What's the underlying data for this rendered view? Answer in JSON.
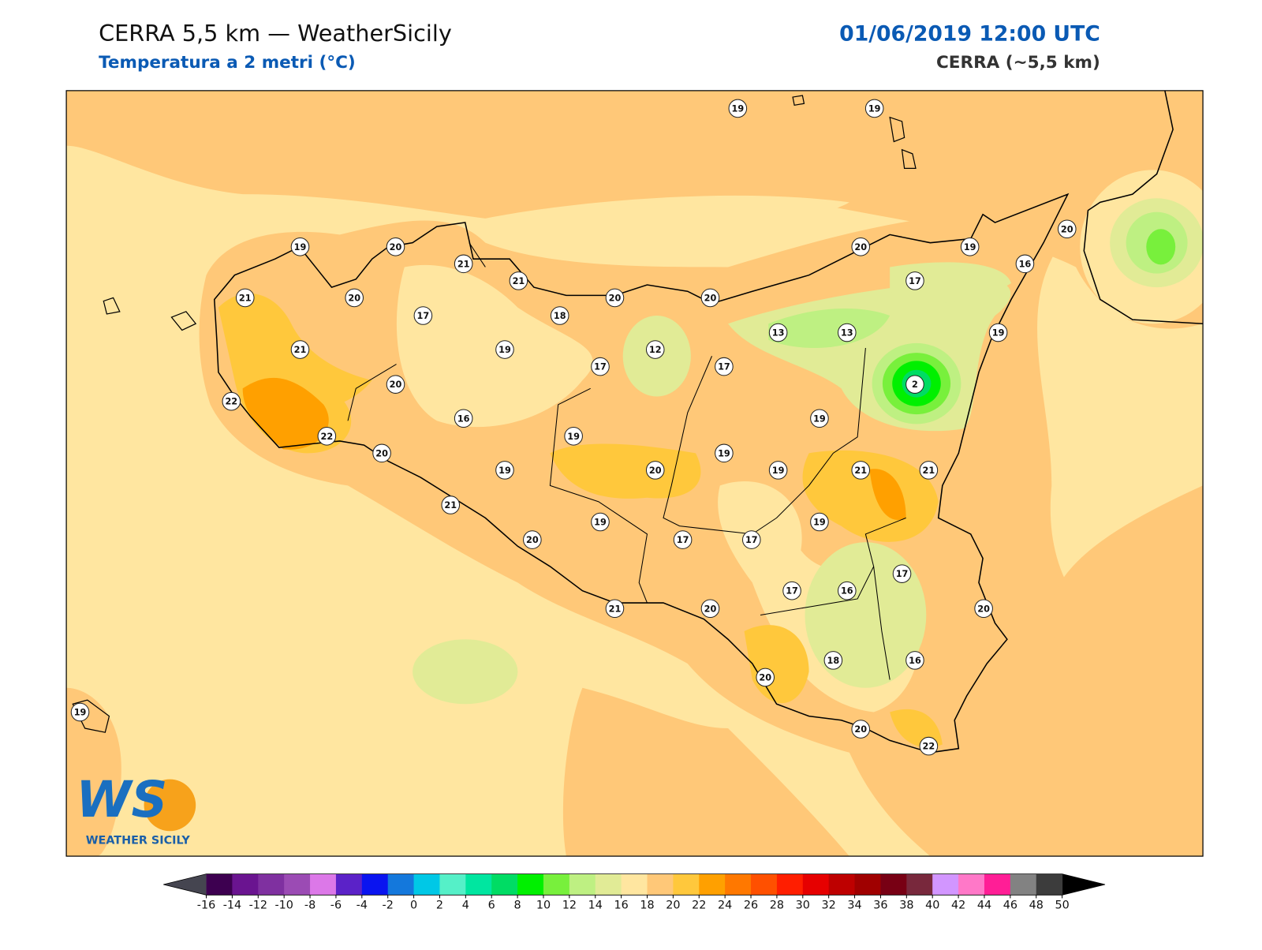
{
  "header": {
    "title": "CERRA 5,5 km — WeatherSicily",
    "subtitle": "Temperatura a 2 metri (°C)",
    "datetime": "01/06/2019 12:00 UTC",
    "model": "CERRA (~5,5 km)"
  },
  "map": {
    "station_values": [
      19,
      19,
      19,
      20,
      21,
      21,
      20,
      19,
      20,
      16,
      17,
      21,
      20,
      20,
      20,
      17,
      18,
      13,
      13,
      19,
      21,
      19,
      12,
      17,
      17,
      20,
      2,
      22,
      16,
      19,
      22,
      19,
      20,
      19,
      19,
      20,
      19,
      21,
      21,
      21,
      19,
      19,
      20,
      17,
      17,
      17,
      17,
      16,
      21,
      20,
      20,
      18,
      16,
      20,
      19,
      20,
      22
    ]
  },
  "logo": {
    "mark": "WS",
    "name": "WEATHER SICILY"
  },
  "colorbar": {
    "ticks": [
      -16,
      -14,
      -12,
      -10,
      -8,
      -6,
      -4,
      -2,
      0,
      2,
      4,
      6,
      8,
      10,
      12,
      14,
      16,
      18,
      20,
      22,
      24,
      26,
      28,
      30,
      32,
      34,
      36,
      38,
      40,
      42,
      44,
      46,
      48,
      50
    ],
    "colors": [
      "#3d0050",
      "#6a1490",
      "#7f30a0",
      "#9b4bb4",
      "#dc78e8",
      "#5b22c8",
      "#0a14f0",
      "#1478dc",
      "#00c8e6",
      "#55f0c8",
      "#00e6a0",
      "#00dc64",
      "#00f000",
      "#78f03c",
      "#bef082",
      "#e1eb96",
      "#ffe6a0",
      "#ffc878",
      "#ffc83c",
      "#ffa000",
      "#ff7800",
      "#ff5000",
      "#ff1e00",
      "#e60000",
      "#be0000",
      "#a00000",
      "#780014",
      "#78283c",
      "#d296ff",
      "#ff78c8",
      "#ff1e96",
      "#828282",
      "#3c3c3c"
    ],
    "under_color": "#454550",
    "over_color": "#000000"
  }
}
